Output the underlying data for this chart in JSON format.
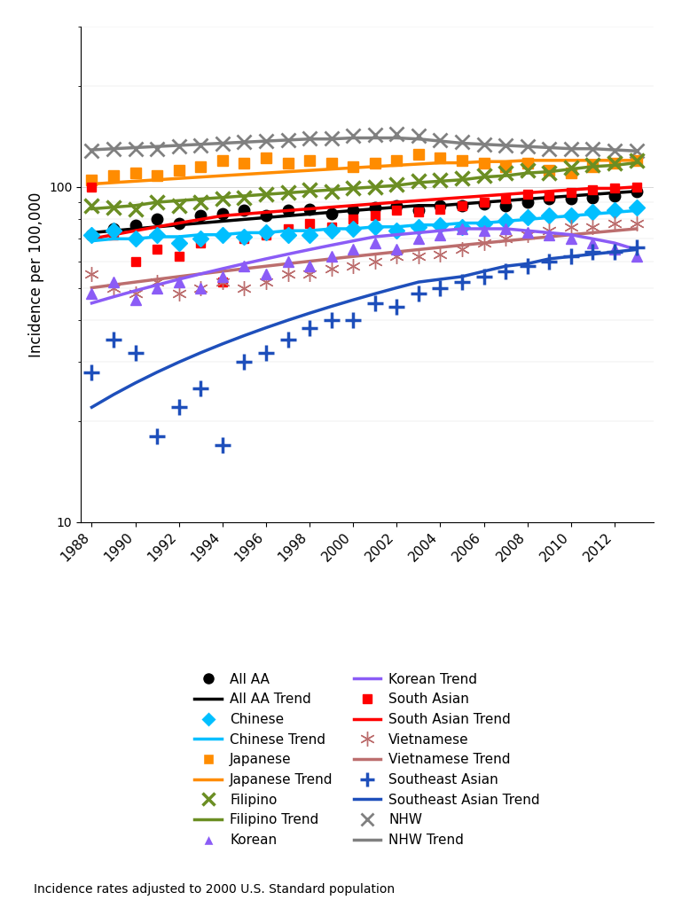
{
  "years": [
    1988,
    1989,
    1990,
    1991,
    1992,
    1993,
    1994,
    1995,
    1996,
    1997,
    1998,
    1999,
    2000,
    2001,
    2002,
    2003,
    2004,
    2005,
    2006,
    2007,
    2008,
    2009,
    2010,
    2011,
    2012,
    2013
  ],
  "all_aa": [
    72,
    75,
    77,
    80,
    78,
    82,
    83,
    85,
    82,
    85,
    86,
    83,
    85,
    87,
    88,
    85,
    88,
    88,
    89,
    88,
    90,
    92,
    92,
    93,
    94,
    97
  ],
  "chinese": [
    72,
    74,
    70,
    72,
    68,
    70,
    72,
    71,
    73,
    72,
    72,
    74,
    75,
    76,
    74,
    76,
    77,
    76,
    78,
    79,
    81,
    82,
    82,
    84,
    85,
    87
  ],
  "japanese": [
    105,
    108,
    110,
    108,
    112,
    115,
    120,
    118,
    122,
    118,
    120,
    118,
    115,
    118,
    120,
    125,
    122,
    120,
    118,
    115,
    118,
    112,
    110,
    115,
    118,
    120
  ],
  "filipino": [
    88,
    87,
    86,
    90,
    88,
    90,
    92,
    93,
    95,
    96,
    98,
    97,
    99,
    100,
    102,
    104,
    105,
    106,
    108,
    110,
    112,
    110,
    114,
    116,
    118,
    120
  ],
  "korean": [
    48,
    52,
    46,
    50,
    52,
    50,
    54,
    58,
    55,
    60,
    58,
    62,
    65,
    68,
    65,
    70,
    72,
    75,
    74,
    75,
    73,
    72,
    70,
    68,
    65,
    62
  ],
  "south_asian": [
    100,
    72,
    60,
    65,
    62,
    68,
    52,
    70,
    72,
    75,
    78,
    76,
    80,
    82,
    85,
    84,
    86,
    88,
    90,
    92,
    95,
    94,
    96,
    98,
    99,
    100
  ],
  "vietnamese": [
    55,
    50,
    48,
    52,
    48,
    50,
    52,
    50,
    52,
    55,
    55,
    57,
    58,
    60,
    62,
    62,
    63,
    65,
    68,
    70,
    72,
    74,
    76,
    76,
    78,
    78
  ],
  "southeast_asian": [
    28,
    35,
    32,
    18,
    22,
    25,
    17,
    30,
    32,
    35,
    38,
    40,
    40,
    45,
    44,
    48,
    50,
    52,
    54,
    56,
    58,
    60,
    62,
    64,
    64,
    66
  ],
  "nhw": [
    128,
    130,
    130,
    130,
    132,
    133,
    135,
    136,
    137,
    138,
    140,
    140,
    142,
    143,
    144,
    142,
    138,
    136,
    134,
    133,
    132,
    130,
    130,
    130,
    128,
    128
  ],
  "all_aa_trend": [
    73,
    74,
    75,
    76,
    77,
    78,
    79,
    80,
    81,
    82,
    83,
    84,
    85,
    86,
    87,
    88,
    88,
    89,
    90,
    91,
    92,
    93,
    94,
    95,
    96,
    97
  ],
  "chinese_trend": [
    69,
    70,
    70,
    71,
    71,
    72,
    72,
    73,
    73,
    74,
    74,
    75,
    75,
    76,
    76,
    77,
    77,
    78,
    78,
    79,
    80,
    81,
    82,
    83,
    84,
    85
  ],
  "japanese_trend": [
    102,
    103,
    104,
    105,
    106,
    107,
    108,
    109,
    110,
    111,
    112,
    113,
    114,
    115,
    116,
    117,
    118,
    118,
    119,
    119,
    120,
    120,
    120,
    120,
    120,
    120
  ],
  "filipino_trend": [
    86,
    87,
    88,
    90,
    91,
    92,
    93,
    94,
    95,
    96,
    97,
    98,
    99,
    100,
    101,
    103,
    104,
    105,
    107,
    108,
    110,
    111,
    113,
    115,
    116,
    118
  ],
  "korean_trend": [
    45,
    47,
    49,
    51,
    53,
    55,
    57,
    59,
    61,
    63,
    65,
    67,
    69,
    71,
    72,
    73,
    74,
    75,
    75,
    75,
    74,
    73,
    72,
    70,
    68,
    65
  ],
  "south_asian_trend": [
    70,
    72,
    74,
    76,
    78,
    80,
    82,
    83,
    84,
    85,
    86,
    87,
    88,
    89,
    90,
    91,
    92,
    93,
    94,
    95,
    96,
    97,
    98,
    99,
    99,
    100
  ],
  "vietnamese_trend": [
    50,
    51,
    52,
    53,
    54,
    55,
    56,
    57,
    58,
    59,
    60,
    61,
    62,
    63,
    64,
    65,
    66,
    67,
    68,
    69,
    70,
    71,
    72,
    73,
    74,
    75
  ],
  "southeast_asian_trend": [
    22,
    24,
    26,
    28,
    30,
    32,
    34,
    36,
    38,
    40,
    42,
    44,
    46,
    48,
    50,
    52,
    53,
    54,
    56,
    58,
    59,
    61,
    62,
    63,
    64,
    65
  ],
  "nhw_trend": [
    129,
    130,
    131,
    132,
    133,
    134,
    135,
    136,
    137,
    138,
    139,
    139,
    140,
    140,
    140,
    139,
    137,
    135,
    134,
    133,
    132,
    131,
    130,
    130,
    129,
    128
  ],
  "colors": {
    "all_aa": "#000000",
    "chinese": "#00BFFF",
    "japanese": "#FF8C00",
    "filipino": "#6B8E23",
    "korean": "#8B5CF6",
    "south_asian": "#FF0000",
    "vietnamese": "#BC6E6E",
    "southeast_asian": "#1E4FBB",
    "nhw": "#808080"
  },
  "ylabel": "Incidence per 100,000",
  "footnote": "Incidence rates adjusted to 2000 U.S. Standard population"
}
